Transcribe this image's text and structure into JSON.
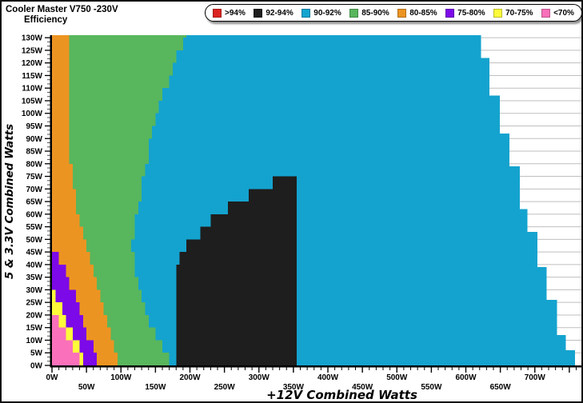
{
  "ui": {
    "title_line1": "Cooler Master V750 -230V",
    "title_line2": "Efficiency"
  },
  "chart_data": {
    "type": "heatmap",
    "title": "Cooler Master V750 -230V Efficiency",
    "xlabel": "+12V Combined Watts",
    "ylabel": "5 & 3.3V Combined Watts",
    "xlim": [
      0,
      771
    ],
    "ylim": [
      0,
      131
    ],
    "x_major_step_w": 50,
    "x_minor_step_w": 10,
    "y_major_step_w": 5,
    "grid": "horizontal-5w-lines-visible-in-no-data-area",
    "legend_position": "top",
    "x_tick_labels": [
      "0W",
      "50W",
      "100W",
      "150W",
      "200W",
      "250W",
      "300W",
      "350W",
      "400W",
      "450W",
      "500W",
      "550W",
      "600W",
      "650W",
      "700W"
    ],
    "y_tick_labels": [
      "0W",
      "5W",
      "10W",
      "15W",
      "20W",
      "25W",
      "30W",
      "35W",
      "40W",
      "45W",
      "50W",
      "55W",
      "60W",
      "65W",
      "70W",
      "75W",
      "80W",
      "85W",
      "90W",
      "95W",
      "100W",
      "105W",
      "110W",
      "115W",
      "120W",
      "125W",
      "130W"
    ],
    "legend": {
      "items": [
        {
          "label": ">94%",
          "color": "#da2420"
        },
        {
          "label": "92-94%",
          "color": "#1e1e1e"
        },
        {
          "label": "90-92%",
          "color": "#14a3cf"
        },
        {
          "label": "85-90%",
          "color": "#58b65c"
        },
        {
          "label": "80-85%",
          "color": "#ec9422"
        },
        {
          "label": "75-80%",
          "color": "#7c09e8"
        },
        {
          "label": "70-75%",
          "color": "#fdfb3a"
        },
        {
          "label": "<70%",
          "color": "#fa70ba"
        }
      ]
    },
    "regions": {
      "background_band": {
        "name": "90-92%",
        "color": "#14a3cf"
      },
      "bands_left_to_right_paint_order": [
        {
          "name": "85-90%",
          "color": "#58b65c",
          "y_top": 131,
          "right_boundary_xw_by_yw": [
            [
              0,
              176
            ],
            [
              5,
              163
            ],
            [
              10,
              152
            ],
            [
              15,
              145
            ],
            [
              20,
              136
            ],
            [
              25,
              130
            ],
            [
              30,
              126
            ],
            [
              38,
              120
            ],
            [
              45,
              117
            ],
            [
              52,
              118
            ],
            [
              60,
              123
            ],
            [
              68,
              128
            ],
            [
              75,
              133
            ],
            [
              83,
              138
            ],
            [
              90,
              144
            ],
            [
              98,
              151
            ],
            [
              105,
              159
            ],
            [
              112,
              167
            ],
            [
              120,
              177
            ],
            [
              125,
              184
            ],
            [
              131,
              195
            ]
          ]
        },
        {
          "name": "80-85%",
          "color": "#ec9422",
          "y_top": 131,
          "right_boundary_xw_by_yw": [
            [
              0,
              100
            ],
            [
              10,
              88
            ],
            [
              20,
              77
            ],
            [
              30,
              66
            ],
            [
              40,
              57
            ],
            [
              50,
              46
            ],
            [
              60,
              38
            ],
            [
              70,
              33
            ],
            [
              78,
              29
            ],
            [
              82,
              27
            ],
            [
              103,
              27
            ],
            [
              105,
              25
            ],
            [
              131,
              25
            ]
          ]
        },
        {
          "name": "75-80%",
          "color": "#7c09e8",
          "y_top": 46,
          "right_boundary_xw_by_yw": [
            [
              0,
              70
            ],
            [
              10,
              55
            ],
            [
              20,
              42
            ],
            [
              28,
              32
            ],
            [
              35,
              22
            ],
            [
              40,
              14
            ],
            [
              46,
              0
            ]
          ]
        },
        {
          "name": "70-75%",
          "color": "#fdfb3a",
          "y_top": 32,
          "right_boundary_xw_by_yw": [
            [
              0,
              52
            ],
            [
              8,
              37
            ],
            [
              15,
              26
            ],
            [
              22,
              15
            ],
            [
              27,
              7
            ],
            [
              32,
              0
            ]
          ]
        },
        {
          "name": "<70%",
          "color": "#fa70ba",
          "y_top": 23,
          "right_boundary_xw_by_yw": [
            [
              0,
              45
            ],
            [
              6,
              34
            ],
            [
              12,
              23
            ],
            [
              17,
              12
            ],
            [
              21,
              4
            ],
            [
              23,
              0
            ]
          ]
        }
      ],
      "island": {
        "name": "92-94%",
        "color": "#1e1e1e",
        "y_top": 75,
        "left_boundary_xw_by_yw": [
          [
            0,
            182
          ],
          [
            15,
            180
          ],
          [
            25,
            179
          ],
          [
            36,
            180
          ],
          [
            42,
            184
          ],
          [
            46,
            191
          ],
          [
            49,
            201
          ],
          [
            54,
            219
          ],
          [
            58,
            233
          ],
          [
            62,
            253
          ],
          [
            65,
            274
          ],
          [
            68,
            289
          ],
          [
            71,
            307
          ],
          [
            73,
            325
          ],
          [
            75,
            341
          ]
        ],
        "right_boundary_xw_by_yw": [
          [
            75,
            357
          ],
          [
            74,
            385
          ],
          [
            72,
            420
          ],
          [
            70,
            447
          ],
          [
            68,
            470
          ],
          [
            65,
            504
          ],
          [
            61,
            535
          ],
          [
            57,
            556
          ],
          [
            52,
            572
          ],
          [
            49,
            580
          ],
          [
            45,
            592
          ],
          [
            40,
            604
          ],
          [
            36,
            613
          ],
          [
            33,
            621
          ],
          [
            28,
            630
          ],
          [
            23,
            637
          ],
          [
            17,
            643
          ],
          [
            11,
            649
          ],
          [
            5,
            653
          ],
          [
            0,
            656
          ]
        ]
      },
      "no_data_right_steps": [
        {
          "y0": 0,
          "y1": 6,
          "x": 758
        },
        {
          "y0": 6,
          "y1": 12,
          "x": 745
        },
        {
          "y0": 12,
          "y1": 26,
          "x": 732
        },
        {
          "y0": 26,
          "y1": 39,
          "x": 717
        },
        {
          "y0": 39,
          "y1": 53,
          "x": 704
        },
        {
          "y0": 53,
          "y1": 62,
          "x": 689
        },
        {
          "y0": 62,
          "y1": 79,
          "x": 678
        },
        {
          "y0": 79,
          "y1": 92,
          "x": 663
        },
        {
          "y0": 92,
          "y1": 107,
          "x": 649
        },
        {
          "y0": 107,
          "y1": 122,
          "x": 634
        },
        {
          "y0": 122,
          "y1": 131,
          "x": 622
        }
      ]
    }
  }
}
